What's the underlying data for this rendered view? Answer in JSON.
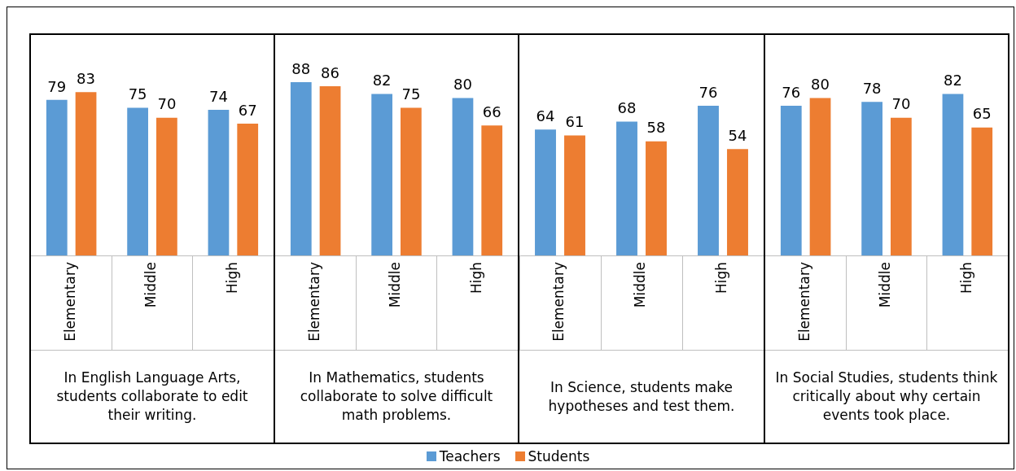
{
  "chart_data": [
    {
      "type": "bar",
      "xlabel": "In English Language Arts, students collaborate to edit their writing.",
      "categories": [
        "Elementary",
        "Middle",
        "High"
      ],
      "ylim": [
        0,
        112
      ],
      "tick_labels": "x",
      "data_labels": true,
      "legend": "bottom",
      "series": [
        {
          "name": "Teachers",
          "color": "#5b9bd5",
          "values": [
            79,
            75,
            74
          ]
        },
        {
          "name": "Students",
          "color": "#ed7d31",
          "values": [
            83,
            70,
            67
          ]
        }
      ]
    },
    {
      "type": "bar",
      "xlabel": "In Mathematics, students collaborate to solve difficult math problems.",
      "categories": [
        "Elementary",
        "Middle",
        "High"
      ],
      "ylim": [
        0,
        112
      ],
      "tick_labels": "x",
      "data_labels": true,
      "series": [
        {
          "color": "#5b9bd5",
          "values": [
            88,
            82,
            80
          ]
        },
        {
          "color": "#ed7d31",
          "values": [
            86,
            75,
            66
          ]
        }
      ]
    },
    {
      "type": "bar",
      "xlabel": "In Science, students make hypotheses and test them.",
      "categories": [
        "Elementary",
        "Middle",
        "High"
      ],
      "ylim": [
        0,
        112
      ],
      "tick_labels": "x",
      "data_labels": true,
      "series": [
        {
          "color": "#5b9bd5",
          "values": [
            64,
            68,
            76
          ]
        },
        {
          "color": "#ed7d31",
          "values": [
            61,
            58,
            54
          ]
        }
      ]
    },
    {
      "type": "bar",
      "xlabel": "In Social Studies, students think critically about why certain events took place.",
      "categories": [
        "Elementary",
        "Middle",
        "High"
      ],
      "ylim": [
        0,
        112
      ],
      "tick_labels": "x",
      "data_labels": true,
      "series": [
        {
          "color": "#5b9bd5",
          "values": [
            76,
            78,
            82
          ]
        },
        {
          "color": "#ed7d31",
          "values": [
            80,
            70,
            65
          ]
        }
      ]
    }
  ]
}
